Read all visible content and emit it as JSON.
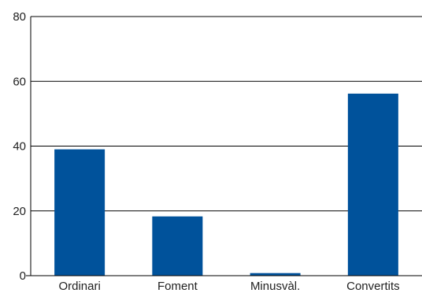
{
  "chart_data": {
    "type": "bar",
    "categories": [
      "Ordinari",
      "Foment",
      "Minusvàl.",
      "Convertits"
    ],
    "values": [
      39,
      18.3,
      0.8,
      56.2
    ],
    "ylim": [
      0,
      80
    ],
    "yticks": [
      0,
      20,
      40,
      60,
      80
    ],
    "grid": true,
    "bar_color": "#00529b",
    "title": "",
    "xlabel": "",
    "ylabel": ""
  }
}
